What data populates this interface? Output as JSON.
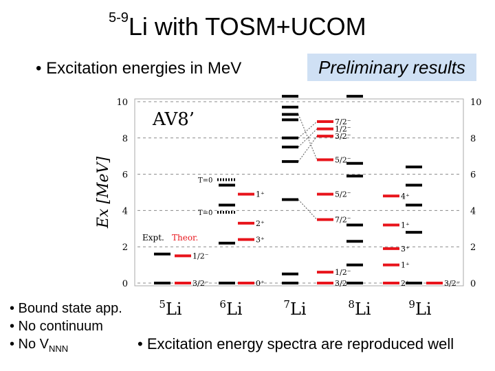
{
  "slide": {
    "title_sup": "5-9",
    "title_main": "Li  with TOSM+UCOM",
    "subtitle": "• Excitation energies in MeV",
    "preliminary": "Preliminary results",
    "bullet1": "• Bound state app.",
    "bullet2": "• No continuum",
    "bullet3_main": "• No V",
    "bullet3_sub": "NNN",
    "conclusion": "• Excitation energy spectra are reproduced well"
  },
  "chart_data": {
    "type": "level-scheme",
    "title": "AV8’",
    "ylabel": "Ex [MeV]",
    "ylim": [
      0,
      10
    ],
    "yticks": [
      0,
      2,
      4,
      6,
      8,
      10
    ],
    "legend": {
      "expt": "Expt.",
      "theor": "Theor."
    },
    "colors": {
      "expt": "#000000",
      "theor": "#e8141b"
    },
    "nuclei": [
      {
        "mass": "5",
        "symbol": "Li",
        "expt": [
          0.0,
          1.6
        ],
        "theor": [
          {
            "e": 0.0,
            "label": "3/2⁻"
          },
          {
            "e": 1.5,
            "label": "1/2⁻"
          }
        ]
      },
      {
        "mass": "6",
        "symbol": "Li",
        "expt": [
          0.0,
          2.2,
          4.3,
          5.4
        ],
        "theor": [
          {
            "e": 0.0,
            "label": "0⁺"
          },
          {
            "e": 2.4,
            "label": "3⁺"
          },
          {
            "e": 3.3,
            "label": "2⁺"
          },
          {
            "e": 4.9,
            "label": "1⁺"
          }
        ],
        "notes": [
          {
            "e": 5.7,
            "label": "T=0"
          },
          {
            "e": 3.9,
            "label": "T=0"
          }
        ]
      },
      {
        "mass": "7",
        "symbol": "Li",
        "expt": [
          0.0,
          0.5,
          4.6,
          6.7,
          7.5,
          8.0,
          9.0,
          9.3,
          9.7,
          10.3
        ],
        "theor": [
          {
            "e": 0.0,
            "label": "3/2⁻"
          },
          {
            "e": 0.6,
            "label": "1/2⁻"
          },
          {
            "e": 3.5,
            "label": "7/2⁻"
          },
          {
            "e": 4.9,
            "label": "5/2⁻"
          },
          {
            "e": 6.8,
            "label": "5/2⁻"
          },
          {
            "e": 8.1,
            "label": "3/2⁻"
          },
          {
            "e": 8.5,
            "label": "1/2⁻"
          },
          {
            "e": 8.9,
            "label": "7/2⁻"
          }
        ]
      },
      {
        "mass": "8",
        "symbol": "Li",
        "expt": [
          0.0,
          1.0,
          2.3,
          3.2,
          5.9,
          6.6,
          10.3
        ],
        "theor": [
          {
            "e": 0.0,
            "label": "2⁺"
          },
          {
            "e": 1.0,
            "label": "1⁺"
          },
          {
            "e": 1.9,
            "label": "3⁺"
          },
          {
            "e": 3.2,
            "label": "1⁺"
          },
          {
            "e": 4.8,
            "label": "4⁺"
          }
        ]
      },
      {
        "mass": "9",
        "symbol": "Li",
        "expt": [
          0.0,
          2.8,
          4.3,
          5.4,
          6.4
        ],
        "theor": [
          {
            "e": 0.0,
            "label": "3/2⁻"
          }
        ]
      }
    ]
  }
}
